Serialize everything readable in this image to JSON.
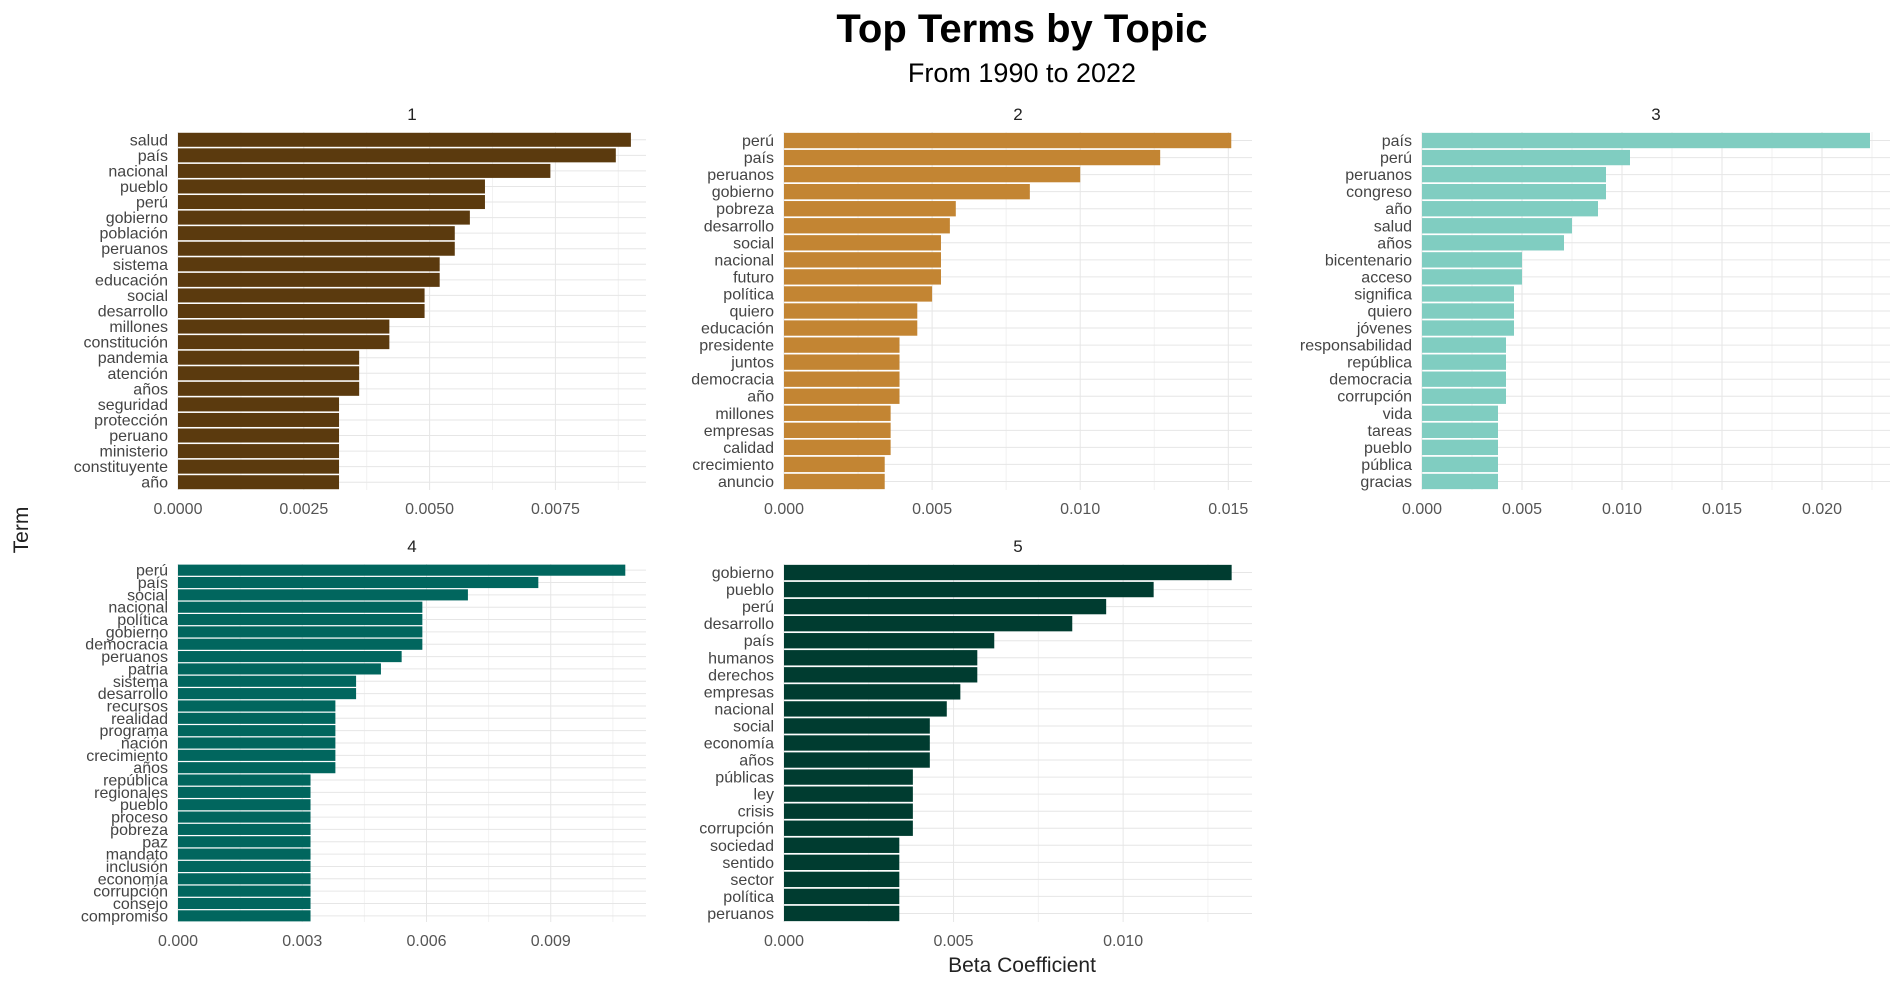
{
  "chart_data": {
    "type": "bar",
    "orientation": "horizontal",
    "title": "Top Terms by Topic",
    "subtitle": "From 1990 to 2022",
    "xlabel": "Beta Coefficient",
    "ylabel": "Term",
    "grid": true,
    "legend": "none",
    "facets": [
      {
        "label": "1",
        "color": "#5b3a0e",
        "xlim": [
          0,
          0.0093
        ],
        "xticks": [
          0,
          0.0025,
          0.005,
          0.0075
        ],
        "xtick_labels": [
          "0.0000",
          "0.0025",
          "0.0050",
          "0.0075"
        ],
        "terms": [
          "salud",
          "país",
          "nacional",
          "pueblo",
          "perú",
          "gobierno",
          "población",
          "peruanos",
          "sistema",
          "educación",
          "social",
          "desarrollo",
          "millones",
          "constitución",
          "pandemia",
          "atención",
          "años",
          "seguridad",
          "protección",
          "peruano",
          "ministerio",
          "constituyente",
          "año"
        ],
        "values": [
          0.009,
          0.0087,
          0.0074,
          0.0061,
          0.0061,
          0.0058,
          0.0055,
          0.0055,
          0.0052,
          0.0052,
          0.0049,
          0.0049,
          0.0042,
          0.0042,
          0.0036,
          0.0036,
          0.0036,
          0.0032,
          0.0032,
          0.0032,
          0.0032,
          0.0032,
          0.0032
        ]
      },
      {
        "label": "2",
        "color": "#c38533",
        "xlim": [
          0,
          0.0158
        ],
        "xticks": [
          0,
          0.005,
          0.01,
          0.015
        ],
        "xtick_labels": [
          "0.000",
          "0.005",
          "0.010",
          "0.015"
        ],
        "terms": [
          "perú",
          "país",
          "peruanos",
          "gobierno",
          "pobreza",
          "desarrollo",
          "social",
          "nacional",
          "futuro",
          "política",
          "quiero",
          "educación",
          "presidente",
          "juntos",
          "democracia",
          "año",
          "millones",
          "empresas",
          "calidad",
          "crecimiento",
          "anuncio"
        ],
        "values": [
          0.0151,
          0.0127,
          0.01,
          0.0083,
          0.0058,
          0.0056,
          0.0053,
          0.0053,
          0.0053,
          0.005,
          0.0045,
          0.0045,
          0.0039,
          0.0039,
          0.0039,
          0.0039,
          0.0036,
          0.0036,
          0.0036,
          0.0034,
          0.0034
        ]
      },
      {
        "label": "3",
        "color": "#80cdc1",
        "xlim": [
          0,
          0.0234
        ],
        "xticks": [
          0,
          0.005,
          0.01,
          0.015,
          0.02
        ],
        "xtick_labels": [
          "0.000",
          "0.005",
          "0.010",
          "0.015",
          "0.020"
        ],
        "terms": [
          "país",
          "perú",
          "peruanos",
          "congreso",
          "año",
          "salud",
          "años",
          "bicentenario",
          "acceso",
          "significa",
          "quiero",
          "jóvenes",
          "responsabilidad",
          "república",
          "democracia",
          "corrupción",
          "vida",
          "tareas",
          "pueblo",
          "pública",
          "gracias"
        ],
        "values": [
          0.0224,
          0.0104,
          0.0092,
          0.0092,
          0.0088,
          0.0075,
          0.0071,
          0.005,
          0.005,
          0.0046,
          0.0046,
          0.0046,
          0.0042,
          0.0042,
          0.0042,
          0.0042,
          0.0038,
          0.0038,
          0.0038,
          0.0038,
          0.0038
        ]
      },
      {
        "label": "4",
        "color": "#01665e",
        "xlim": [
          0,
          0.0113
        ],
        "xticks": [
          0,
          0.003,
          0.006,
          0.009
        ],
        "xtick_labels": [
          "0.000",
          "0.003",
          "0.006",
          "0.009"
        ],
        "terms": [
          "perú",
          "país",
          "social",
          "nacional",
          "política",
          "gobierno",
          "democracia",
          "peruanos",
          "patria",
          "sistema",
          "desarrollo",
          "recursos",
          "realidad",
          "programa",
          "nación",
          "crecimiento",
          "años",
          "república",
          "regionales",
          "pueblo",
          "proceso",
          "pobreza",
          "paz",
          "mandato",
          "inclusión",
          "economía",
          "corrupción",
          "consejo",
          "compromiso"
        ],
        "values": [
          0.0108,
          0.0087,
          0.007,
          0.0059,
          0.0059,
          0.0059,
          0.0059,
          0.0054,
          0.0049,
          0.0043,
          0.0043,
          0.0038,
          0.0038,
          0.0038,
          0.0038,
          0.0038,
          0.0038,
          0.0032,
          0.0032,
          0.0032,
          0.0032,
          0.0032,
          0.0032,
          0.0032,
          0.0032,
          0.0032,
          0.0032,
          0.0032,
          0.0032
        ]
      },
      {
        "label": "5",
        "color": "#003c30",
        "xlim": [
          0,
          0.0138
        ],
        "xticks": [
          0,
          0.005,
          0.01
        ],
        "xtick_labels": [
          "0.000",
          "0.005",
          "0.010"
        ],
        "terms": [
          "gobierno",
          "pueblo",
          "perú",
          "desarrollo",
          "país",
          "humanos",
          "derechos",
          "empresas",
          "nacional",
          "social",
          "economía",
          "años",
          "públicas",
          "ley",
          "crisis",
          "corrupción",
          "sociedad",
          "sentido",
          "sector",
          "política",
          "peruanos"
        ],
        "values": [
          0.0132,
          0.0109,
          0.0095,
          0.0085,
          0.0062,
          0.0057,
          0.0057,
          0.0052,
          0.0048,
          0.0043,
          0.0043,
          0.0043,
          0.0038,
          0.0038,
          0.0038,
          0.0038,
          0.0034,
          0.0034,
          0.0034,
          0.0034,
          0.0034
        ]
      }
    ]
  }
}
